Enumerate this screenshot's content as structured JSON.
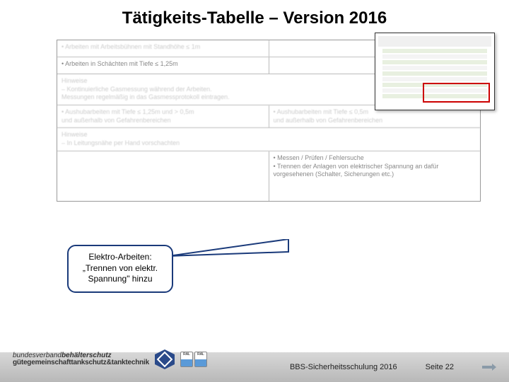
{
  "title": "Tätigkeits-Tabelle – Version 2016",
  "table": {
    "rows": [
      {
        "left": "• Arbeiten mit Arbeitsbühnen mit Standhöhe ≤ 1m",
        "right": "",
        "blur": true
      },
      {
        "left": "• Arbeiten in Schächten mit Tiefe ≤ 1,25m",
        "right": ""
      },
      {
        "full": "Hinweise\n– Kontinuierliche Gasmessung während der Arbeiten.\n  Messungen regelmäßig in das Gasmessprotokoll eintragen.",
        "blur": true
      },
      {
        "left": "• Aushubarbeiten mit Tiefe ≤ 1,25m und > 0,5m\n  und außerhalb von Gefahrenbereichen",
        "right": "• Aushubarbeiten mit Tiefe ≤ 0,5m\n  und außerhalb von Gefahrenbereichen",
        "blur": true
      },
      {
        "full": "Hinweise\n– In Leitungsnähe per Hand vorschachten",
        "blur": true
      },
      {
        "left": "",
        "right": "• Messen / Prüfen / Fehlersuche\n• Trennen der Anlagen von elektrischer Spannung an dafür\n  vorgesehenen (Schalter, Sicherungen etc.)",
        "tall": true
      }
    ]
  },
  "callout": {
    "line1": "Elektro-Arbeiten:",
    "line2": "„Trennen von elektr.",
    "line3": "Spannung\" hinzu"
  },
  "thumb": {
    "highlight_color": "#c00000"
  },
  "footer": {
    "logo_line1_prefix": "bundesverband",
    "logo_line1_bold": "behälterschutz",
    "logo_line2": "gütegemeinschafttankschutz&tanktechnik",
    "badge1": "RAL",
    "badge2": "RAL",
    "center_text": "BBS-Sicherheitsschulung 2016",
    "page_label": "Seite 22"
  },
  "colors": {
    "callout_border": "#1a3a7a",
    "footer_grad_top": "#d8d8d8",
    "footer_grad_bot": "#b8b8b8"
  }
}
